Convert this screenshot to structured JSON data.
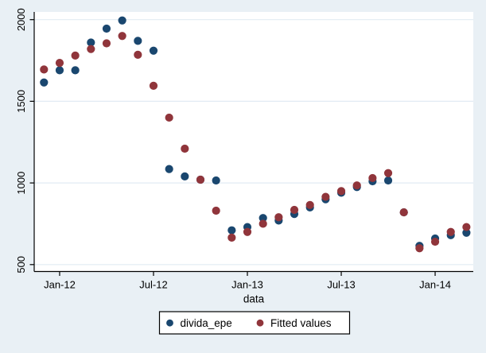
{
  "figure": {
    "background_color": "#e9f0f5",
    "plot_background_color": "#ffffff",
    "gridline_color": "#e2ebf3",
    "axis_color": "#000000",
    "text_color": "#000000",
    "legend_border_color": "#000000",
    "legend_background_color": "#ffffff"
  },
  "chart_data": {
    "type": "scatter",
    "title": "",
    "xlabel": "data",
    "ylabel": "",
    "grid": "horizontal",
    "legend_position": "bottom-center",
    "legend_border": true,
    "y_ticks": [
      500,
      1000,
      1500,
      2000
    ],
    "ylim": [
      465,
      2045
    ],
    "x_ticks": [
      {
        "label": "Jan-12",
        "month_index": 1
      },
      {
        "label": "Jul-12",
        "month_index": 7
      },
      {
        "label": "Jan-13",
        "month_index": 13
      },
      {
        "label": "Jul-13",
        "month_index": 19
      },
      {
        "label": "Jan-14",
        "month_index": 25
      }
    ],
    "categories": [
      "Dec-11",
      "Jan-12",
      "Feb-12",
      "Mar-12",
      "Apr-12",
      "May-12",
      "Jun-12",
      "Jul-12",
      "Aug-12",
      "Sep-12",
      "Oct-12",
      "Nov-12",
      "Dec-12",
      "Jan-13",
      "Feb-13",
      "Mar-13",
      "Apr-13",
      "May-13",
      "Jun-13",
      "Jul-13",
      "Aug-13",
      "Sep-13",
      "Oct-13",
      "Nov-13",
      "Dec-13",
      "Jan-14",
      "Feb-14",
      "Mar-14"
    ],
    "series": [
      {
        "name": "divida_epe",
        "marker_color": "#1a476f",
        "values": [
          1615,
          1690,
          1690,
          1860,
          1945,
          1995,
          1870,
          1810,
          1085,
          1040,
          1020,
          1015,
          710,
          730,
          785,
          770,
          810,
          850,
          900,
          940,
          975,
          1010,
          1015,
          820,
          615,
          660,
          680,
          695
        ]
      },
      {
        "name": "Fitted values",
        "marker_color": "#90353b",
        "values": [
          1695,
          1735,
          1780,
          1820,
          1855,
          1900,
          1785,
          1595,
          1400,
          1210,
          1020,
          830,
          665,
          700,
          750,
          790,
          835,
          865,
          915,
          950,
          985,
          1030,
          1060,
          820,
          600,
          640,
          700,
          730
        ]
      }
    ]
  }
}
